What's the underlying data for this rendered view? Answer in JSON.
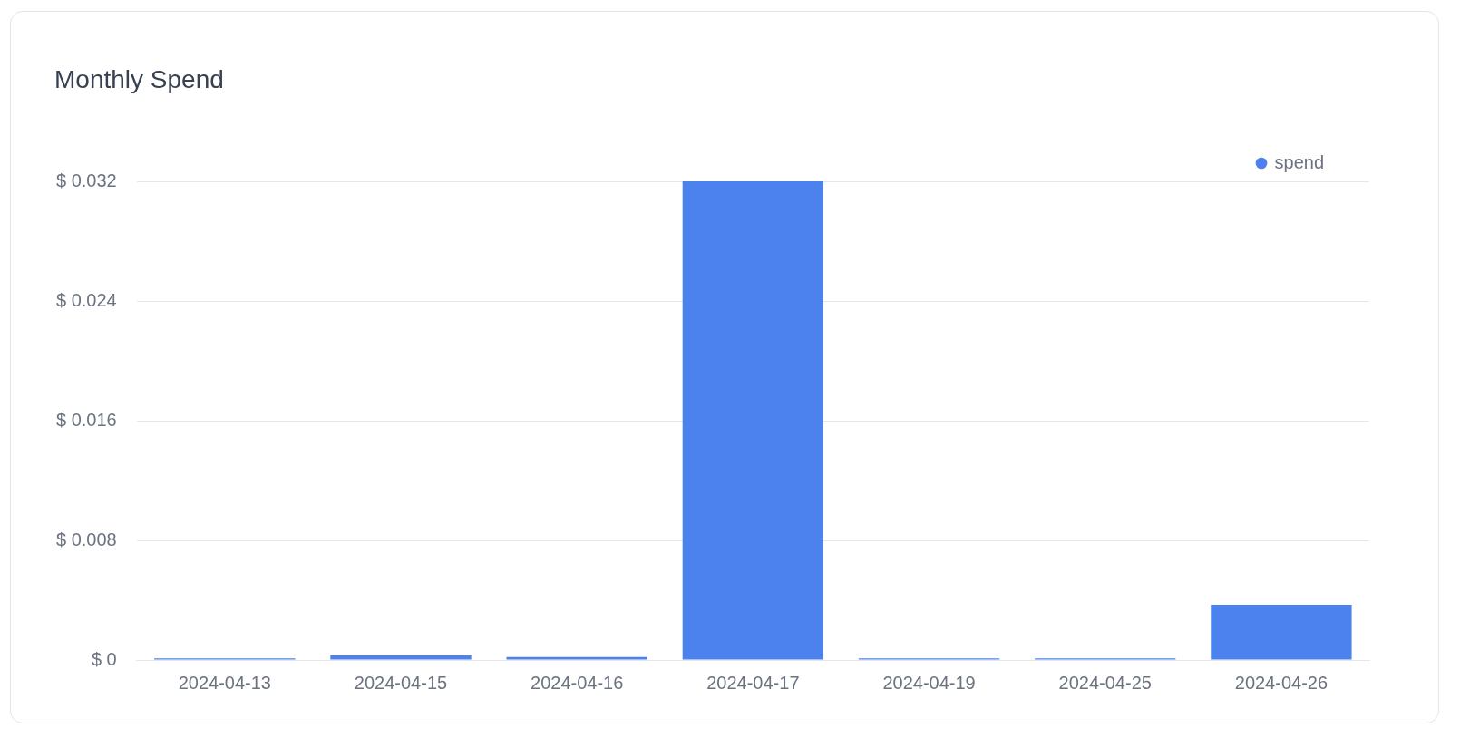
{
  "chart_data": {
    "type": "bar",
    "title": "Monthly Spend",
    "categories": [
      "2024-04-13",
      "2024-04-15",
      "2024-04-16",
      "2024-04-17",
      "2024-04-19",
      "2024-04-25",
      "2024-04-26"
    ],
    "series": [
      {
        "name": "spend",
        "color": "#4c82ee",
        "values": [
          0.0001,
          0.0003,
          0.0002,
          0.032,
          0.0001,
          0.0001,
          0.0037
        ]
      }
    ],
    "ylim": [
      0,
      0.032
    ],
    "yticks": [
      {
        "value": 0,
        "label": "$ 0"
      },
      {
        "value": 0.008,
        "label": "$ 0.008"
      },
      {
        "value": 0.016,
        "label": "$ 0.016"
      },
      {
        "value": 0.024,
        "label": "$ 0.024"
      },
      {
        "value": 0.032,
        "label": "$ 0.032"
      }
    ],
    "grid": "y",
    "legend": "top right"
  }
}
